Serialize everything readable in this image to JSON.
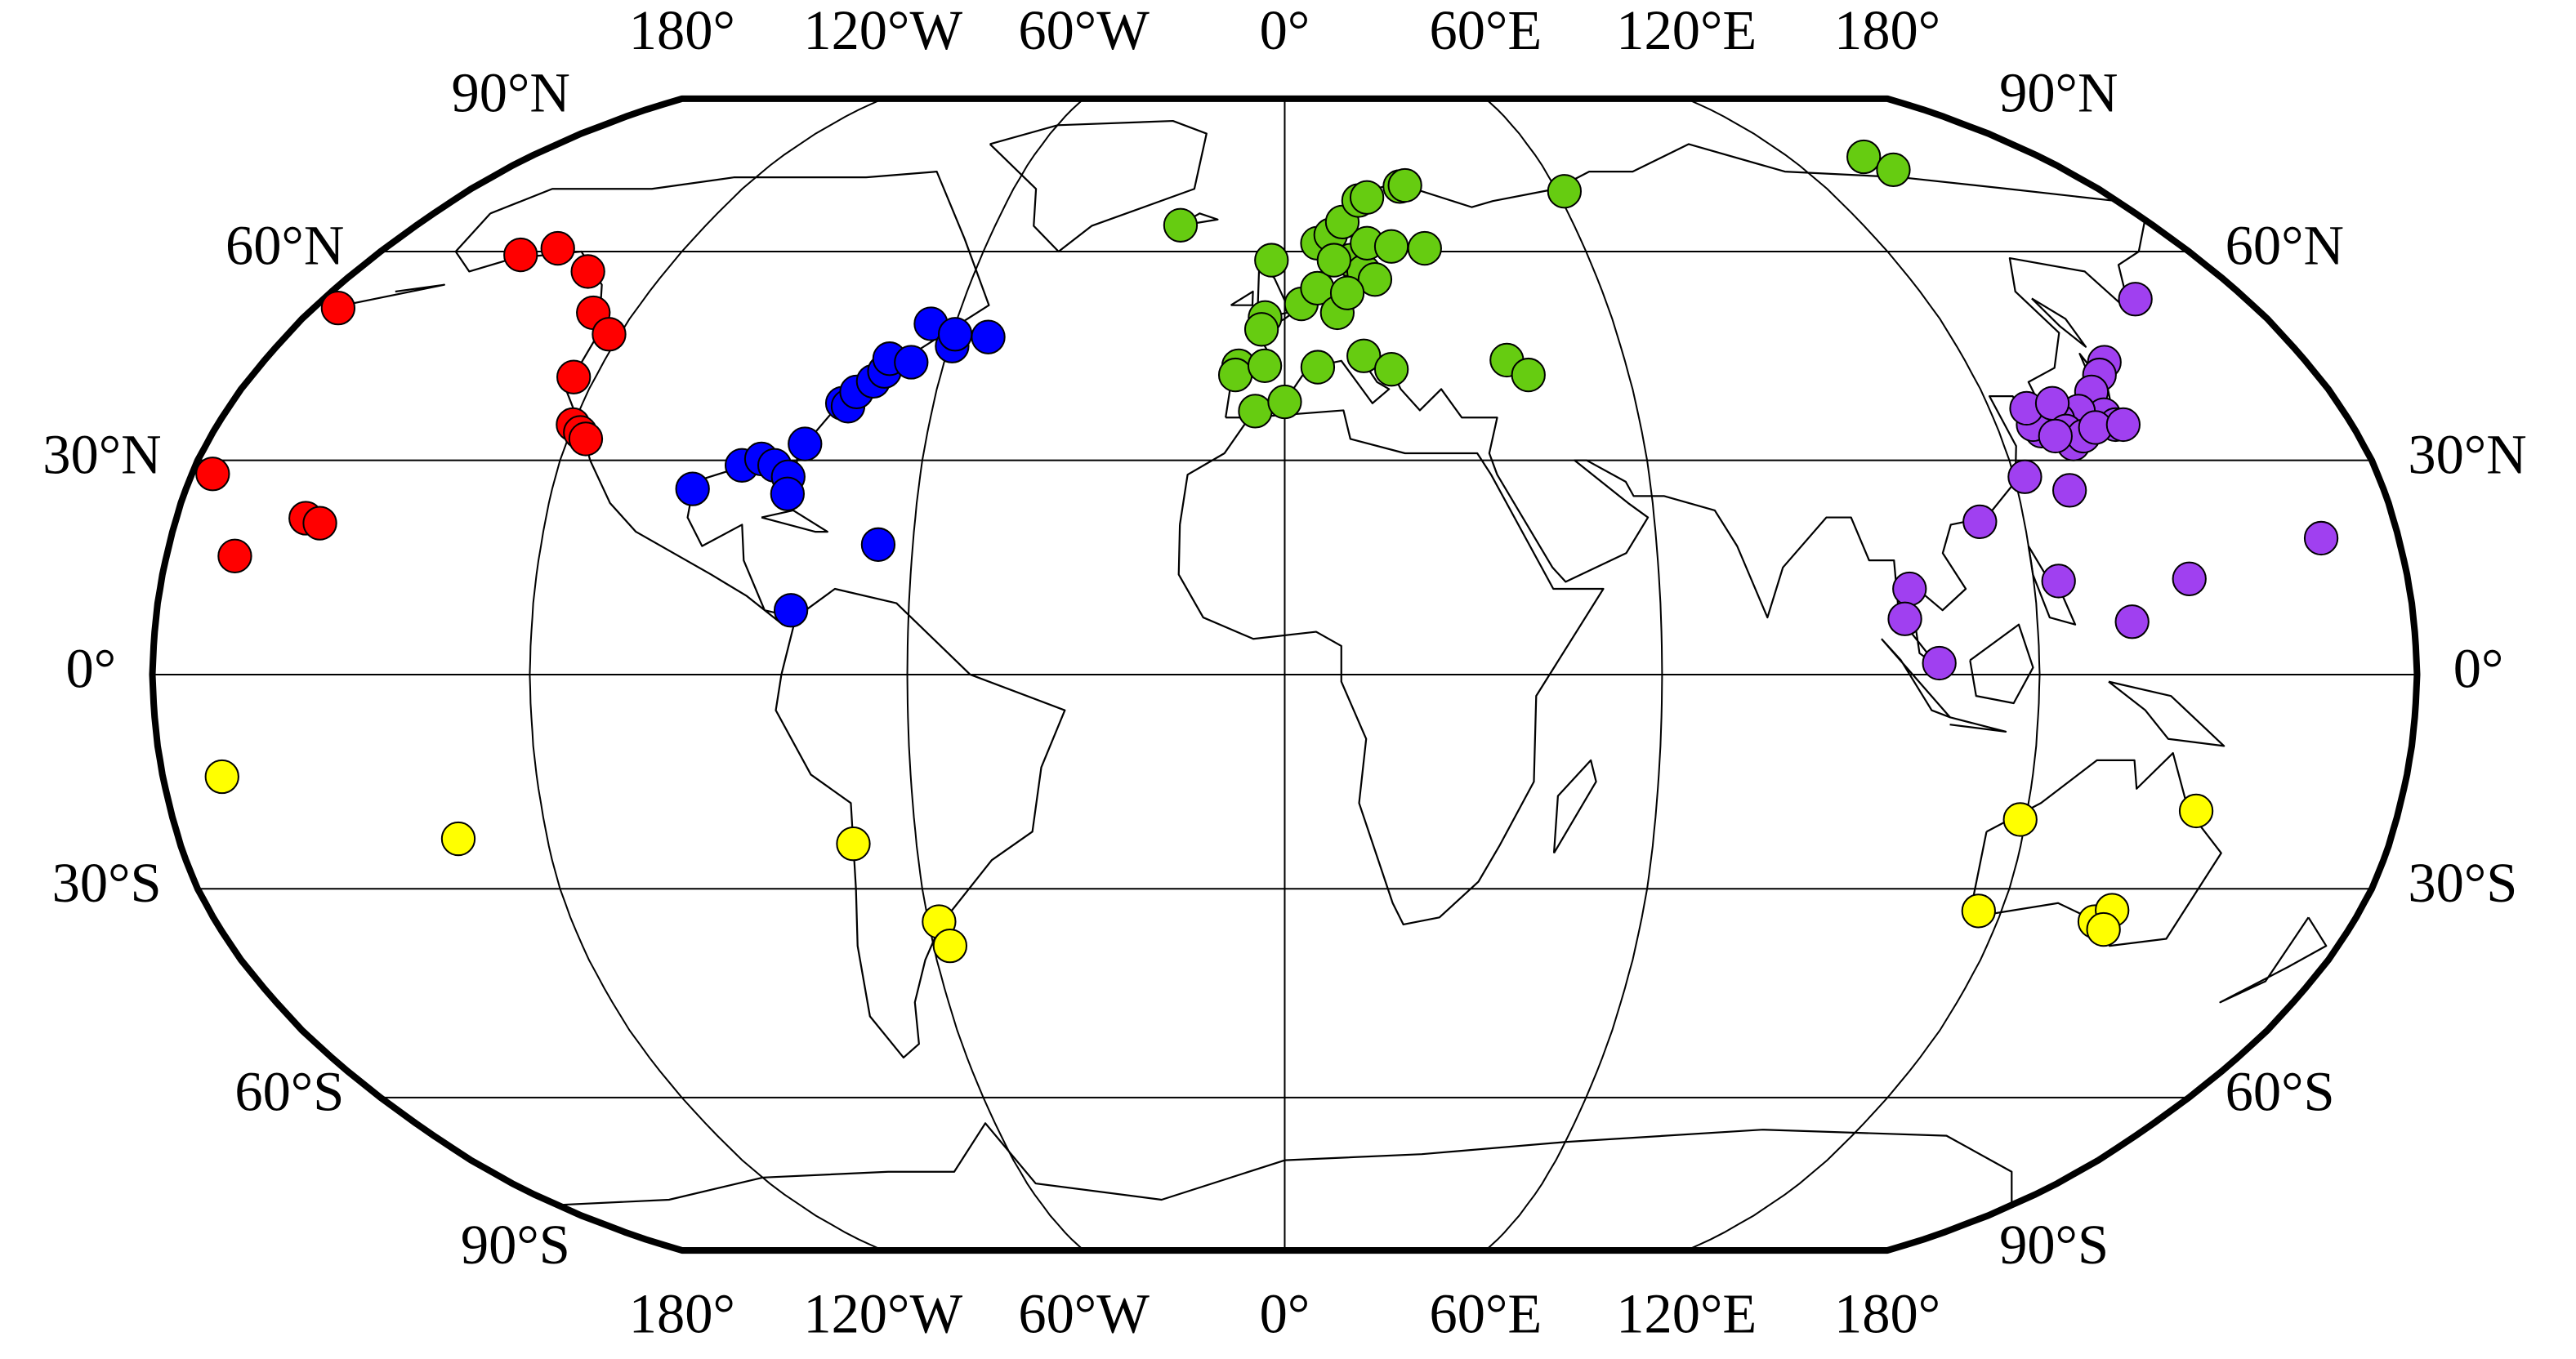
{
  "map": {
    "projection": "robinson",
    "lon_ticks": [
      {
        "value": -180,
        "label": "180°"
      },
      {
        "value": -120,
        "label": "120°W"
      },
      {
        "value": -60,
        "label": "60°W"
      },
      {
        "value": 0,
        "label": "0°"
      },
      {
        "value": 60,
        "label": "60°E"
      },
      {
        "value": 120,
        "label": "120°E"
      },
      {
        "value": 180,
        "label": "180°"
      }
    ],
    "lat_ticks": [
      {
        "value": 90,
        "label": "90°N"
      },
      {
        "value": 60,
        "label": "60°N"
      },
      {
        "value": 30,
        "label": "30°N"
      },
      {
        "value": 0,
        "label": "0°"
      },
      {
        "value": -30,
        "label": "30°S"
      },
      {
        "value": -60,
        "label": "60°S"
      },
      {
        "value": -90,
        "label": "90°S"
      }
    ],
    "groups": [
      {
        "color": "#ff0000",
        "points": [
          [
            -175.5,
            51.6
          ],
          [
            -151.4,
            59.5
          ],
          [
            -145.4,
            60.5
          ],
          [
            -135,
            57
          ],
          [
            -127.5,
            50.9
          ],
          [
            -122,
            47.8
          ],
          [
            -123.8,
            41.7
          ],
          [
            -120,
            35
          ],
          [
            -118.3,
            33.9
          ],
          [
            -117,
            33
          ],
          [
            -176.6,
            28.1
          ],
          [
            -169,
            16.6
          ],
          [
            -159,
            21.9
          ],
          [
            -156.5,
            21.2
          ]
        ]
      },
      {
        "color": "#0000ff",
        "points": [
          [
            -97,
            26
          ],
          [
            -89.7,
            29.3
          ],
          [
            -86.7,
            30.2
          ],
          [
            -84.3,
            29.3
          ],
          [
            -81.7,
            27.7
          ],
          [
            -81.3,
            25.3
          ],
          [
            -78.8,
            9
          ],
          [
            -80.1,
            32.3
          ],
          [
            -75.6,
            38
          ],
          [
            -74.5,
            37.6
          ],
          [
            -73.7,
            39.6
          ],
          [
            -71.4,
            41.1
          ],
          [
            -70,
            42.5
          ],
          [
            -69.8,
            44.3
          ],
          [
            -65.8,
            43.8
          ],
          [
            -64.5,
            49.3
          ],
          [
            -59.4,
            46.1
          ],
          [
            -59.5,
            47.8
          ],
          [
            -53.4,
            47.4
          ],
          [
            -65.6,
            18.2
          ]
        ]
      },
      {
        "color": "#66cc11",
        "points": [
          [
            -21.6,
            64.1
          ],
          [
            -2.6,
            58.7
          ],
          [
            -3.6,
            50.2
          ],
          [
            -4.2,
            48.5
          ],
          [
            -8.1,
            43.3
          ],
          [
            -8.6,
            42
          ],
          [
            -3.5,
            43.3
          ],
          [
            -5,
            36.9
          ],
          [
            0,
            38.2
          ],
          [
            5.8,
            43.1
          ],
          [
            3.1,
            52.2
          ],
          [
            6.6,
            61.3
          ],
          [
            9.4,
            62.6
          ],
          [
            12,
            64.6
          ],
          [
            16,
            68.1
          ],
          [
            17.9,
            68.6
          ],
          [
            25.6,
            70.4
          ],
          [
            26.8,
            70.6
          ],
          [
            28,
            60.5
          ],
          [
            61.6,
            69.6
          ],
          [
            138,
            75.6
          ],
          [
            140.5,
            73.3
          ],
          [
            39.2,
            44.1
          ],
          [
            42.5,
            42
          ],
          [
            14,
            44.7
          ],
          [
            18.7,
            42.8
          ],
          [
            6.2,
            54.5
          ],
          [
            9.7,
            50.9
          ],
          [
            13,
            58.7
          ],
          [
            15.3,
            57
          ],
          [
            17.3,
            55.8
          ],
          [
            9.7,
            58.7
          ],
          [
            11.8,
            53.8
          ],
          [
            16.6,
            61.3
          ],
          [
            21.4,
            60.8
          ]
        ]
      },
      {
        "color": "#a040f0",
        "points": [
          [
            159.3,
            52.9
          ],
          [
            144.4,
            43.8
          ],
          [
            142.1,
            42
          ],
          [
            138.9,
            39.6
          ],
          [
            139,
            36.4
          ],
          [
            140.1,
            35
          ],
          [
            135,
            36.9
          ],
          [
            130.8,
            35.7
          ],
          [
            127.2,
            34.1
          ],
          [
            126.2,
            35
          ],
          [
            126.4,
            37.3
          ],
          [
            131.2,
            38
          ],
          [
            131.3,
            34.1
          ],
          [
            131.7,
            32.3
          ],
          [
            133.9,
            33.4
          ],
          [
            136.5,
            34.6
          ],
          [
            141.4,
            35
          ],
          [
            129.2,
            33.4
          ],
          [
            121.8,
            27.7
          ],
          [
            112.8,
            21.4
          ],
          [
            128.5,
            25.8
          ],
          [
            124,
            13.1
          ],
          [
            100,
            12
          ],
          [
            98.9,
            7.8
          ],
          [
            104.1,
            1.6
          ],
          [
            135.1,
            7.4
          ],
          [
            145,
            13.4
          ],
          [
            167.5,
            19.1
          ]
        ]
      },
      {
        "color": "#ffff00",
        "points": [
          [
            -170.5,
            -14.3
          ],
          [
            -134.5,
            -23
          ],
          [
            -70.3,
            -23.7
          ],
          [
            -58.2,
            -34.6
          ],
          [
            -57.2,
            -38
          ],
          [
            119.1,
            -20.3
          ],
          [
            116.2,
            -33.1
          ],
          [
            136.4,
            -34.6
          ],
          [
            138.5,
            -33
          ],
          [
            138.5,
            -35.7
          ],
          [
            147.3,
            -19.1
          ]
        ]
      }
    ]
  }
}
